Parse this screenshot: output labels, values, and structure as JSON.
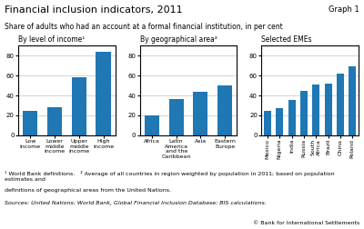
{
  "title": "Financial inclusion indicators, 2011",
  "subtitle": "Share of adults who had an account at a formal financial institution, in per cent",
  "annotations": [
    "Graph 1",
    "¹ World Bank definitions.   ² Average of all countries in region weighted by population in 2011; based on population estimates and",
    "definitions of geographical areas from the United Nations.",
    "Sources: United Nations; World Bank, Global Financial Inclusion Database; BIS calculations.",
    "© Bank for International Settlements"
  ],
  "chart_data": [
    {
      "type": "bar",
      "title": "By level of income¹",
      "categories": [
        "Low\nincome",
        "Lower\nmiddle\nincome",
        "Upper\nmiddle\nincome",
        "High\nincome"
      ],
      "values": [
        24,
        28,
        58,
        84
      ],
      "ylim": [
        0,
        90
      ],
      "yticks": [
        0,
        20,
        40,
        60,
        80
      ],
      "grid": true
    },
    {
      "type": "bar",
      "title": "By geographical area²",
      "categories": [
        "Africa",
        "Latin\nAmerica\nand the\nCaribbean",
        "Asia",
        "Eastern\nEurope"
      ],
      "values": [
        20,
        36,
        44,
        50
      ],
      "ylim": [
        0,
        90
      ],
      "yticks": [
        0,
        20,
        40,
        60,
        80
      ],
      "grid": true
    },
    {
      "type": "bar",
      "title": "Selected EMEs",
      "categories": [
        "Mexico",
        "Nigeria",
        "India",
        "Russia",
        "South\nAfrica",
        "Brazil",
        "China",
        "Poland"
      ],
      "values": [
        24,
        27,
        35,
        45,
        51,
        52,
        62,
        69
      ],
      "ylim": [
        0,
        90
      ],
      "yticks": [
        0,
        20,
        40,
        60,
        80
      ],
      "grid": true
    }
  ]
}
